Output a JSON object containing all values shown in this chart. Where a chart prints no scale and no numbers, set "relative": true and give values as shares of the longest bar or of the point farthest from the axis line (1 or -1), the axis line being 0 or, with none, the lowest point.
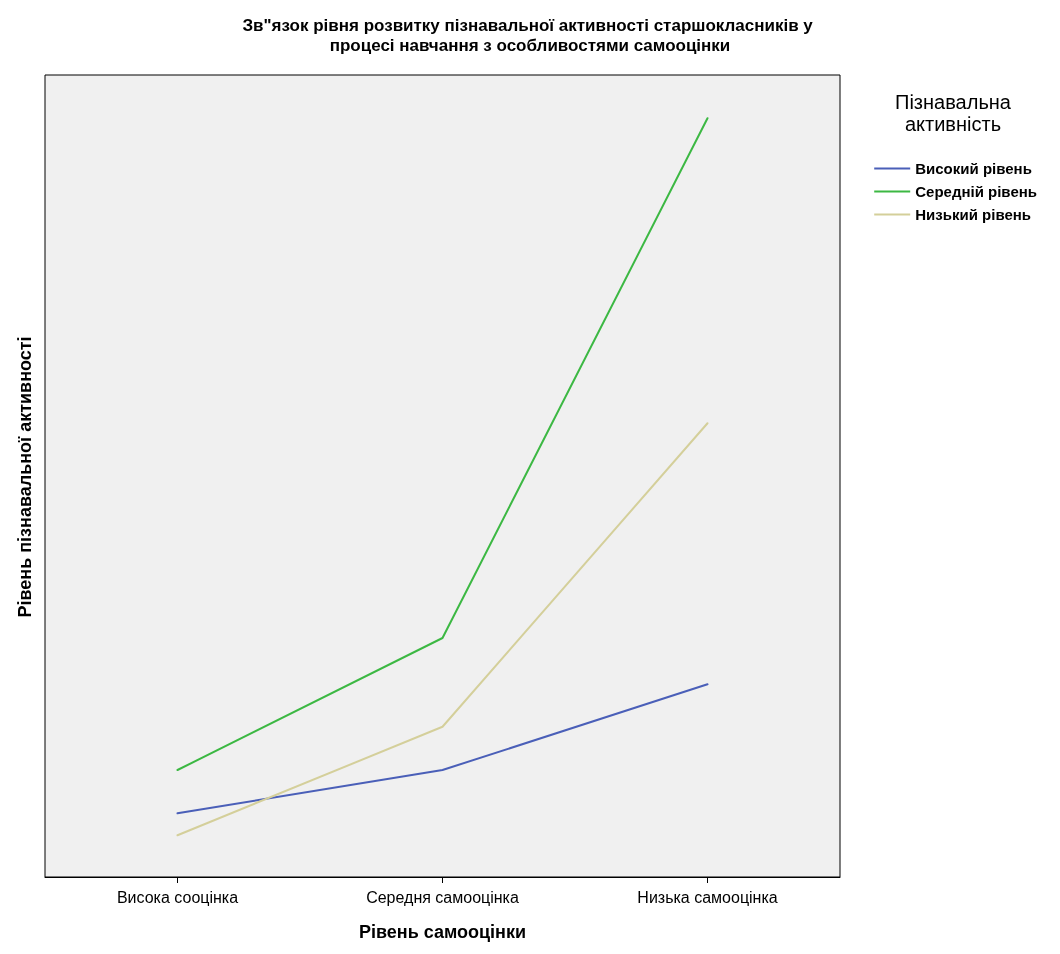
{
  "chart_data": {
    "type": "line",
    "title": "Зв\"язок рівня розвитку пізнавальної активності старшокласників у процесі навчання з особливостями самооцінки",
    "xlabel": "Рівень самооцінки",
    "ylabel": "Рівень пізнавальної активності",
    "legend_title": "Пізнавальна активність",
    "categories": [
      "Висока сооцінка",
      "Середня самооцінка",
      "Низька самооцінка"
    ],
    "relative": true,
    "series": [
      {
        "name": "Високий рівень",
        "color": "#4a5fb8",
        "values": [
          0.084,
          0.141,
          0.254
        ]
      },
      {
        "name": "Середній рівень",
        "color": "#3cb843",
        "values": [
          0.141,
          0.315,
          1
        ]
      },
      {
        "name": "Низький рівень",
        "color": "#d4cf9a",
        "values": [
          0.055,
          0.198,
          0.598
        ]
      }
    ],
    "legend": "top right",
    "grid": false,
    "marker": "none",
    "line_style": "solid"
  }
}
